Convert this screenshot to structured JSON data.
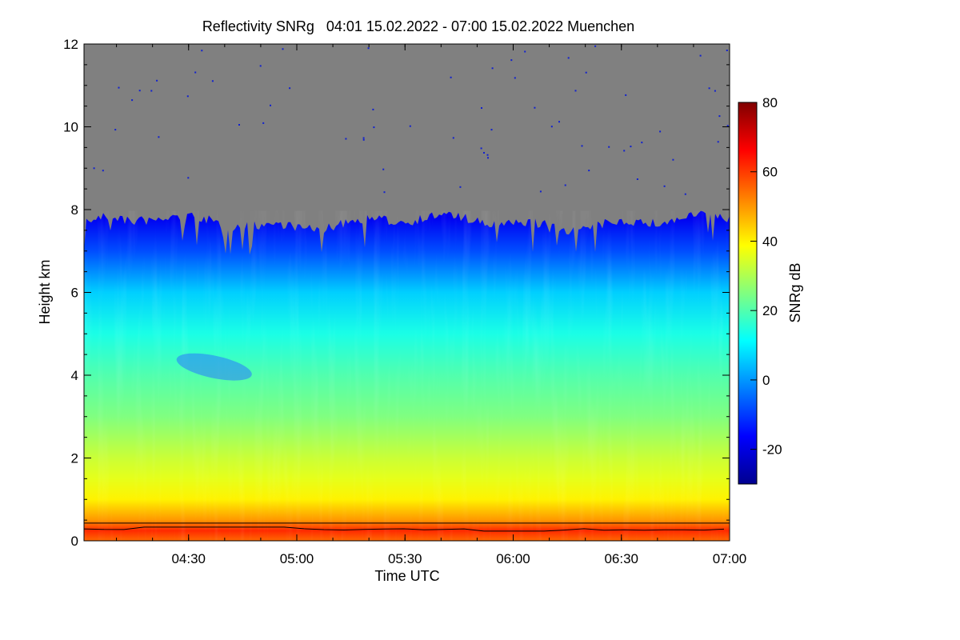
{
  "chart_data": {
    "type": "heatmap",
    "title": "Reflectivity SNRg   04:01 15.02.2022 - 07:00 15.02.2022 Muenchen",
    "xlabel": "Time UTC",
    "ylabel": "Height km",
    "colorbar_label": "SNRg dB",
    "x_range": [
      "04:01",
      "07:00"
    ],
    "x_ticks": [
      "04:30",
      "05:00",
      "05:30",
      "06:00",
      "06:30",
      "07:00"
    ],
    "y_range": [
      0,
      12
    ],
    "y_ticks": [
      "0",
      "2",
      "4",
      "6",
      "8",
      "10",
      "12"
    ],
    "colorbar_range": [
      -30,
      80
    ],
    "colorbar_ticks": [
      "-20",
      "0",
      "20",
      "40",
      "60",
      "80"
    ],
    "no_signal_color": "#808080",
    "colormap": [
      "#00008f",
      "#0000ff",
      "#0080ff",
      "#00ffff",
      "#80ff80",
      "#ffff00",
      "#ff8000",
      "#ff0000",
      "#800000"
    ],
    "profile": {
      "heights_km": [
        0,
        0.25,
        0.5,
        1.0,
        1.5,
        2.0,
        3.0,
        4.0,
        5.0,
        6.0,
        7.0,
        7.8
      ],
      "snr_db": [
        55,
        62,
        50,
        40,
        36,
        33,
        25,
        20,
        14,
        6,
        -8,
        -18
      ]
    },
    "cloud_top_km": 8.0,
    "boundary_layer_top_km": 0.35
  }
}
